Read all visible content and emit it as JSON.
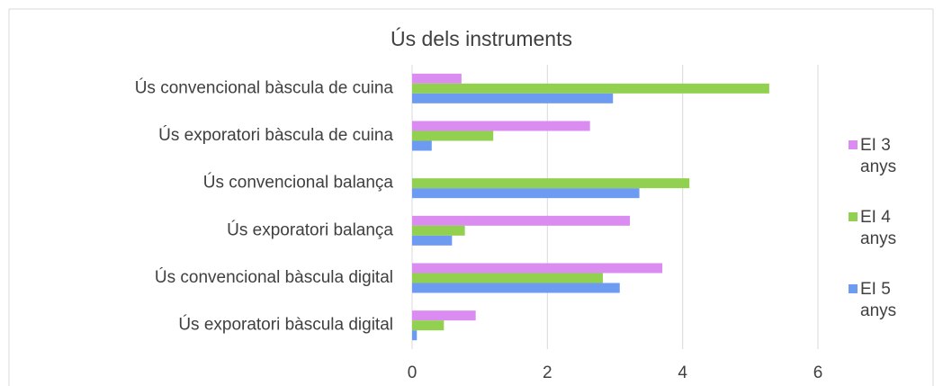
{
  "chart_data": {
    "type": "hbar",
    "title": "Ús dels instruments",
    "categories": [
      "Ús convencional bàscula de cuina",
      "Ús exporatori bàscula de cuina",
      "Ús convencional balança",
      "Ús exporatori balança",
      "Ús convencional bàscula digital",
      "Ús exporatori bàscula digital"
    ],
    "series": [
      {
        "name": "EI 3 anys",
        "color": "#da8cf0",
        "values": [
          0.73,
          2.63,
          0,
          3.22,
          3.7,
          0.94
        ]
      },
      {
        "name": "EI 4 anys",
        "color": "#92d050",
        "values": [
          5.28,
          1.2,
          4.1,
          0.78,
          2.82,
          0.47
        ]
      },
      {
        "name": "EI 5 anys",
        "color": "#6d9bf1",
        "values": [
          2.97,
          0.29,
          3.36,
          0.59,
          3.07,
          0.07
        ]
      }
    ],
    "xlim": [
      0,
      6
    ],
    "xticks": [
      0,
      2,
      4,
      6
    ],
    "grid": true,
    "legend": "right"
  }
}
